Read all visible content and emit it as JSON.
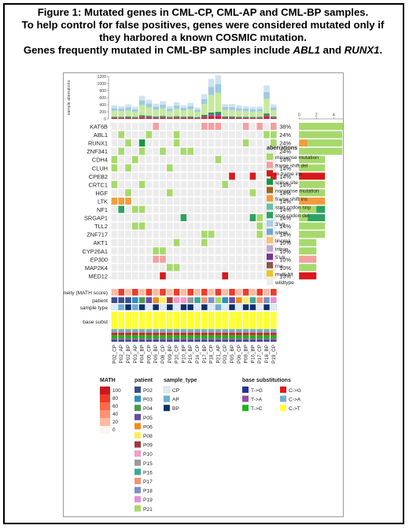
{
  "caption": {
    "line1": "Figure 1: Mutated genes in CML-CP, CML-AP and CML-BP samples.",
    "line2": "To help control for false positives, genes were considered mutated only if",
    "line3": "they harbored a known COSMIC mutation.",
    "line4_prefix": "Genes frequently mutated in CML-BP samples include ",
    "gene_a": "ABL1",
    "line4_and": " and ",
    "gene_b": "RUNX1",
    "line4_end": "."
  },
  "chart_data": {
    "type": "heatmap",
    "top_bar": {
      "ylabel": "sample aberrations",
      "yticks": [
        0,
        200,
        400,
        600,
        800,
        1000,
        1200
      ],
      "values": [
        380,
        360,
        410,
        340,
        650,
        540,
        430,
        500,
        360,
        470,
        390,
        450,
        320,
        700,
        1130,
        1230,
        420,
        420,
        380,
        360,
        340,
        350,
        950,
        410
      ]
    },
    "samples": [
      "P02_CP",
      "P02_AP",
      "P02_BP",
      "P03_AP",
      "P04_BP",
      "P05_CP",
      "P06_BP",
      "P08_CP",
      "P09_BP",
      "P10_CP",
      "P10_BP",
      "P15_BP",
      "P16_CP",
      "P17_BP",
      "P18_CP",
      "P21_AP",
      "P03_CP",
      "P05_BP",
      "P06_CP",
      "P08_BP",
      "P16_BP",
      "P17_CP",
      "P18_BP",
      "P19_CP"
    ],
    "genes": [
      "KAT6B",
      "ABL1",
      "RUNX1",
      "ZNF341",
      "CDH4",
      "CLUH",
      "CPEB2",
      "CRTC1",
      "HGF",
      "LTK",
      "NF1",
      "SRGAP1",
      "TLL2",
      "ZNF717",
      "AKT1",
      "CYP26A1",
      "EP300",
      "MAP2K4",
      "MED12"
    ],
    "percents": [
      "38%",
      "24%",
      "24%",
      "24%",
      "14%",
      "14%",
      "14%",
      "14%",
      "14%",
      "14%",
      "14%",
      "14%",
      "14%",
      "14%",
      "10%",
      "10%",
      "10%",
      "10%",
      "10%"
    ],
    "mutations": [
      [
        [
          6,
          1
        ],
        [
          13,
          1
        ],
        [
          14,
          1
        ],
        [
          15,
          1
        ],
        [
          19,
          1
        ],
        [
          21,
          1
        ],
        [
          23,
          1
        ]
      ],
      [
        [
          1,
          0
        ],
        [
          5,
          0
        ],
        [
          9,
          0
        ],
        [
          22,
          0
        ],
        [
          23,
          0
        ]
      ],
      [
        [
          2,
          0
        ],
        [
          4,
          3
        ],
        [
          9,
          0
        ],
        [
          19,
          0
        ],
        [
          23,
          0
        ]
      ],
      [
        [
          1,
          0
        ],
        [
          4,
          0
        ],
        [
          7,
          0
        ],
        [
          10,
          0
        ],
        [
          11,
          0
        ]
      ],
      [
        [
          0,
          0
        ],
        [
          3,
          0
        ],
        [
          15,
          0
        ]
      ],
      [
        [
          0,
          0
        ],
        [
          2,
          0
        ],
        [
          8,
          0
        ]
      ],
      [
        [
          17,
          2
        ],
        [
          20,
          2
        ],
        [
          23,
          2
        ]
      ],
      [
        [
          0,
          0
        ],
        [
          4,
          0
        ],
        [
          16,
          0
        ]
      ],
      [
        [
          2,
          0
        ],
        [
          8,
          0
        ],
        [
          20,
          0
        ]
      ],
      [
        [
          0,
          5
        ],
        [
          1,
          5
        ],
        [
          2,
          5
        ]
      ],
      [
        [
          1,
          7
        ],
        [
          3,
          0
        ],
        [
          4,
          0
        ]
      ],
      [
        [
          10,
          7
        ],
        [
          20,
          7
        ],
        [
          21,
          0
        ]
      ],
      [
        [
          3,
          0
        ],
        [
          4,
          0
        ],
        [
          21,
          0
        ]
      ],
      [
        [
          13,
          0
        ],
        [
          14,
          0
        ],
        [
          21,
          0
        ]
      ],
      [
        [
          9,
          0
        ],
        [
          13,
          0
        ]
      ],
      [
        [
          6,
          0
        ],
        [
          7,
          0
        ]
      ],
      [
        [
          6,
          1
        ],
        [
          7,
          1
        ]
      ],
      [
        [
          8,
          0
        ],
        [
          9,
          0
        ]
      ],
      [
        [
          7,
          2
        ],
        [
          16,
          2
        ]
      ]
    ],
    "right_bar": {
      "xticks": [
        0,
        2,
        4,
        6,
        8
      ],
      "rows": [
        [
          {
            "c": "missense",
            "n": 7
          },
          {
            "c": "frame_shift_del",
            "n": 0.9
          },
          {
            "c": "in_frame_ins",
            "n": 0.5
          }
        ],
        [
          {
            "c": "missense",
            "n": 5
          }
        ],
        [
          {
            "c": "frame_shift_ins",
            "n": 1
          },
          {
            "c": "missense",
            "n": 4
          }
        ],
        [
          {
            "c": "missense",
            "n": 5
          }
        ],
        [
          {
            "c": "missense",
            "n": 3
          }
        ],
        [
          {
            "c": "missense",
            "n": 3
          }
        ],
        [
          {
            "c": "in_frame_ins",
            "n": 3
          }
        ],
        [
          {
            "c": "missense",
            "n": 3
          }
        ],
        [
          {
            "c": "missense",
            "n": 3
          }
        ],
        [
          {
            "c": "frame_shift_ins",
            "n": 3
          }
        ],
        [
          {
            "c": "missense",
            "n": 2
          },
          {
            "c": "stop_codon_del",
            "n": 1
          }
        ],
        [
          {
            "c": "missense",
            "n": 1
          },
          {
            "c": "stop_codon_del",
            "n": 2
          }
        ],
        [
          {
            "c": "missense",
            "n": 3
          }
        ],
        [
          {
            "c": "missense",
            "n": 3
          }
        ],
        [
          {
            "c": "missense",
            "n": 2
          }
        ],
        [
          {
            "c": "missense",
            "n": 2
          }
        ],
        [
          {
            "c": "frame_shift_del",
            "n": 2
          }
        ],
        [
          {
            "c": "missense",
            "n": 2
          }
        ],
        [
          {
            "c": "in_frame_ins",
            "n": 2
          }
        ]
      ]
    },
    "aberrations_legend": {
      "title": "aberrations",
      "items": [
        {
          "key": "missense",
          "label": "missense mutation",
          "color": "#a6d96a"
        },
        {
          "key": "frame_shift_del",
          "label": "frame shift del",
          "color": "#f4a0a0"
        },
        {
          "key": "in_frame_ins",
          "label": "in frame ins",
          "color": "#d7191c"
        },
        {
          "key": "splice_site",
          "label": "splice site",
          "color": "#1a9641"
        },
        {
          "key": "nonsense",
          "label": "nonsense mutation",
          "color": "#a6611a"
        },
        {
          "key": "frame_shift_ins",
          "label": "frame shift ins",
          "color": "#f39c3c"
        },
        {
          "key": "start_codon_snp",
          "label": "start codon snp",
          "color": "#66c2a4"
        },
        {
          "key": "stop_codon_del",
          "label": "stop codon del",
          "color": "#2ca25f"
        },
        {
          "key": "utr3",
          "label": "3'utr",
          "color": "#a6cee3"
        },
        {
          "key": "silent",
          "label": "silent",
          "color": "#6fa9d6"
        },
        {
          "key": "lincrna",
          "label": "lincrna",
          "color": "#fdbf6f"
        },
        {
          "key": "intron",
          "label": "intron",
          "color": "#c2a5cf"
        },
        {
          "key": "utr5",
          "label": "5'utr",
          "color": "#7b3294"
        },
        {
          "key": "rna",
          "label": "rna",
          "color": "#8c564b"
        },
        {
          "key": "multi_hit",
          "label": "multi hit",
          "color": "#f0c419"
        },
        {
          "key": "wildtype",
          "label": "wildtype",
          "color": "#ececec"
        }
      ]
    },
    "annotation_rows": {
      "heterogeneity": "heterogeneity (MATH score)",
      "patient": "patient",
      "sample_type": "sample type",
      "base_subst": "base subst"
    },
    "math_legend": {
      "title": "MATH",
      "ticks": [
        "100",
        "80",
        "60",
        "40",
        "20",
        "0"
      ]
    },
    "patient_legend": {
      "title": "patient",
      "items": [
        {
          "label": "P02",
          "color": "#3b4e8c"
        },
        {
          "label": "P03",
          "color": "#2a8fc2"
        },
        {
          "label": "P04",
          "color": "#4c9c4c"
        },
        {
          "label": "P05",
          "color": "#6e48a8"
        },
        {
          "label": "P06",
          "color": "#f08c1e"
        },
        {
          "label": "P08",
          "color": "#ffee58"
        },
        {
          "label": "P09",
          "color": "#9e3a3a"
        },
        {
          "label": "P10",
          "color": "#f59ac8"
        },
        {
          "label": "P15",
          "color": "#9b9b9b"
        },
        {
          "label": "P16",
          "color": "#3aa89a"
        },
        {
          "label": "P17",
          "color": "#f5926c"
        },
        {
          "label": "P18",
          "color": "#7d8fc4"
        },
        {
          "label": "P19",
          "color": "#e391d6"
        },
        {
          "label": "P21",
          "color": "#a6d96a"
        }
      ]
    },
    "sample_type_legend": {
      "title": "sample_type",
      "items": [
        {
          "label": "CP",
          "color": "#deebf7"
        },
        {
          "label": "AP",
          "color": "#6aaed6"
        },
        {
          "label": "BP",
          "color": "#08306b"
        }
      ]
    },
    "base_legend": {
      "title": "base substitutions",
      "items": [
        {
          "label": "T->G",
          "color": "#253494"
        },
        {
          "label": "C->G",
          "color": "#e31a1c"
        },
        {
          "label": "T->A",
          "color": "#984ea3"
        },
        {
          "label": "C->A",
          "color": "#74add1"
        },
        {
          "label": "T->C",
          "color": "#1db51d"
        },
        {
          "label": "C->T",
          "color": "#ffff33"
        }
      ]
    }
  }
}
